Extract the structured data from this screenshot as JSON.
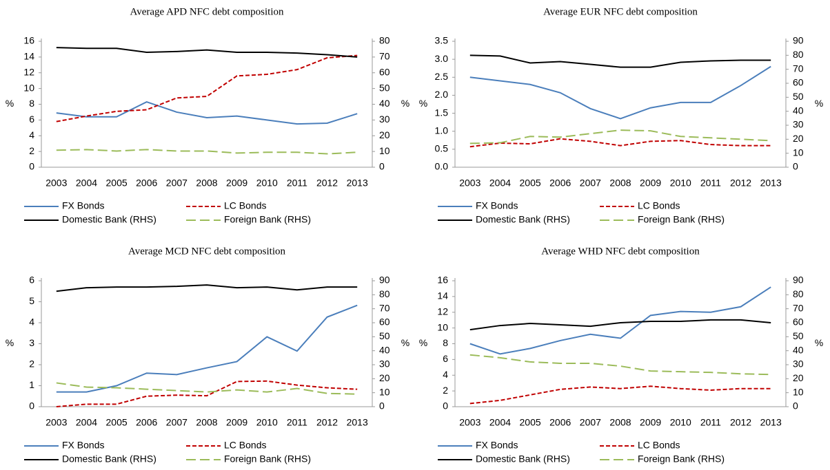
{
  "chart_data": [
    {
      "type": "line",
      "title": "Average APD NFC debt composition",
      "ylabel": "%",
      "y2label": "%",
      "categories": [
        "2003",
        "2004",
        "2005",
        "2006",
        "2007",
        "2008",
        "2009",
        "2010",
        "2011",
        "2012",
        "2013"
      ],
      "ylim": [
        0,
        16
      ],
      "yticks": [
        0,
        2,
        4,
        6,
        8,
        10,
        12,
        14,
        16
      ],
      "y2lim": [
        0,
        80
      ],
      "y2ticks": [
        0,
        10,
        20,
        30,
        40,
        50,
        60,
        70,
        80
      ],
      "series": [
        {
          "name": "FX Bonds",
          "color": "#4a7ebb",
          "style": "solid",
          "values": [
            6.9,
            6.4,
            6.4,
            8.3,
            7.0,
            6.3,
            6.5,
            6.0,
            5.5,
            5.6,
            6.8
          ]
        },
        {
          "name": "LC Bonds",
          "color": "#c00000",
          "style": "dashed",
          "values": [
            5.8,
            6.5,
            7.1,
            7.3,
            8.8,
            9.0,
            11.6,
            11.8,
            12.4,
            13.9,
            14.2
          ]
        },
        {
          "name": "Domestic Bank (RHS)",
          "color": "#000000",
          "style": "solid",
          "axis": "y2",
          "values": [
            76,
            75.5,
            75.5,
            73,
            73.5,
            74.5,
            73,
            73,
            72.5,
            71.5,
            70
          ]
        },
        {
          "name": "Foreign Bank (RHS)",
          "color": "#9bbb59",
          "style": "longdash",
          "axis": "y2",
          "values": [
            10.8,
            11.2,
            10.3,
            11.2,
            10.3,
            10.3,
            9.0,
            9.5,
            9.5,
            8.5,
            9.5
          ]
        }
      ]
    },
    {
      "type": "line",
      "title": "Average  EUR NFC debt composition",
      "ylabel": "%",
      "y2label": "%",
      "categories": [
        "2003",
        "2004",
        "2005",
        "2006",
        "2007",
        "2008",
        "2009",
        "2010",
        "2011",
        "2012",
        "2013"
      ],
      "ylim": [
        0,
        3.5
      ],
      "yticks": [
        {
          "value": 0,
          "label": "0.0"
        },
        0.5,
        {
          "value": 1,
          "label": "1.0"
        },
        1.5,
        {
          "value": 2,
          "label": "2.0"
        },
        2.5,
        {
          "value": 3,
          "label": "3.0"
        },
        3.5
      ],
      "y2lim": [
        0,
        90
      ],
      "y2ticks": [
        0,
        10,
        20,
        30,
        40,
        50,
        60,
        70,
        80,
        90
      ],
      "series": [
        {
          "name": "FX Bonds",
          "color": "#4a7ebb",
          "style": "solid",
          "values": [
            2.5,
            2.4,
            2.3,
            2.07,
            1.63,
            1.35,
            1.65,
            1.8,
            1.8,
            2.27,
            2.8
          ]
        },
        {
          "name": "LC Bonds",
          "color": "#c00000",
          "style": "dashed",
          "values": [
            0.57,
            0.67,
            0.65,
            0.79,
            0.72,
            0.6,
            0.72,
            0.74,
            0.63,
            0.6,
            0.6
          ]
        },
        {
          "name": "Domestic Bank (RHS)",
          "color": "#000000",
          "style": "solid",
          "axis": "y2",
          "values": [
            80,
            79.5,
            74.5,
            75.5,
            73.5,
            71.5,
            71.5,
            75,
            76,
            76.5,
            76.5
          ]
        },
        {
          "name": "Foreign Bank (RHS)",
          "color": "#9bbb59",
          "style": "longdash",
          "axis": "y2",
          "values": [
            17,
            17.5,
            22,
            21.5,
            24,
            26.5,
            26,
            22,
            21,
            20,
            19
          ]
        }
      ]
    },
    {
      "type": "line",
      "title": "Average  MCD NFC debt composition",
      "ylabel": "%",
      "y2label": "%",
      "categories": [
        "2003",
        "2004",
        "2005",
        "2006",
        "2007",
        "2008",
        "2009",
        "2010",
        "2011",
        "2012",
        "2013"
      ],
      "ylim": [
        0,
        6
      ],
      "yticks": [
        0,
        1,
        2,
        3,
        4,
        5,
        6
      ],
      "y2lim": [
        0,
        90
      ],
      "y2ticks": [
        0,
        10,
        20,
        30,
        40,
        50,
        60,
        70,
        80,
        90
      ],
      "series": [
        {
          "name": "FX Bonds",
          "color": "#4a7ebb",
          "style": "solid",
          "values": [
            0.7,
            0.7,
            1.0,
            1.6,
            1.53,
            1.85,
            2.15,
            3.33,
            2.65,
            4.27,
            4.83
          ]
        },
        {
          "name": "LC Bonds",
          "color": "#c00000",
          "style": "dashed",
          "values": [
            0,
            0.12,
            0.12,
            0.5,
            0.55,
            0.52,
            1.2,
            1.22,
            1.03,
            0.9,
            0.83
          ]
        },
        {
          "name": "Domestic Bank (RHS)",
          "color": "#000000",
          "style": "solid",
          "axis": "y2",
          "values": [
            82.5,
            85,
            85.5,
            85.5,
            86,
            87,
            85,
            85.5,
            83.5,
            85.5,
            85.5
          ]
        },
        {
          "name": "Foreign Bank (RHS)",
          "color": "#9bbb59",
          "style": "longdash",
          "axis": "y2",
          "values": [
            17,
            14,
            13.5,
            12.5,
            11.5,
            10.5,
            12,
            10.5,
            13,
            9.5,
            9
          ]
        }
      ]
    },
    {
      "type": "line",
      "title": "Average  WHD NFC debt composition",
      "ylabel": "%",
      "y2label": "%",
      "categories": [
        "2003",
        "2004",
        "2005",
        "2006",
        "2007",
        "2008",
        "2009",
        "2010",
        "2011",
        "2012",
        "2013"
      ],
      "ylim": [
        0,
        16
      ],
      "yticks": [
        0,
        2,
        4,
        6,
        8,
        10,
        12,
        14,
        16
      ],
      "y2lim": [
        0,
        90
      ],
      "y2ticks": [
        0,
        10,
        20,
        30,
        40,
        50,
        60,
        70,
        80,
        90
      ],
      "series": [
        {
          "name": "FX Bonds",
          "color": "#4a7ebb",
          "style": "solid",
          "values": [
            8.0,
            6.7,
            7.4,
            8.4,
            9.2,
            8.7,
            11.6,
            12.1,
            12.0,
            12.7,
            15.2
          ]
        },
        {
          "name": "LC Bonds",
          "color": "#c00000",
          "style": "dashed",
          "values": [
            0.4,
            0.8,
            1.5,
            2.2,
            2.5,
            2.3,
            2.6,
            2.3,
            2.1,
            2.3,
            2.3
          ]
        },
        {
          "name": "Domestic Bank (RHS)",
          "color": "#000000",
          "style": "solid",
          "axis": "y2",
          "values": [
            55,
            58,
            59.5,
            58.5,
            57.5,
            60,
            61,
            61,
            62,
            62,
            60
          ]
        },
        {
          "name": "Foreign Bank (RHS)",
          "color": "#9bbb59",
          "style": "longdash",
          "axis": "y2",
          "values": [
            37,
            35,
            32,
            31,
            31,
            29,
            25.5,
            25,
            24.5,
            23.5,
            23
          ]
        }
      ]
    }
  ]
}
